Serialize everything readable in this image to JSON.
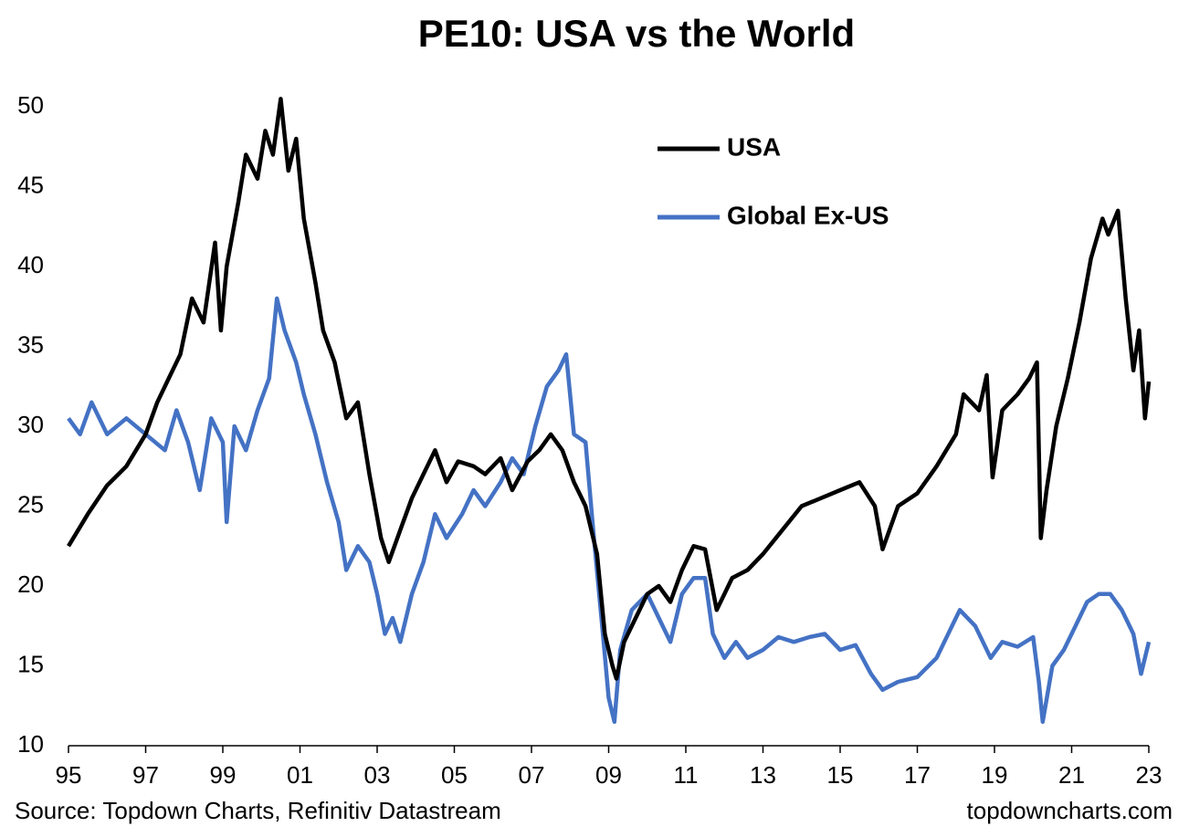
{
  "chart_data": {
    "type": "line",
    "title": "PE10: USA vs the World",
    "annotations": [
      "Source: Topdown Charts, Refinitiv Datastream",
      "topdowncharts.com"
    ],
    "xlim": [
      1995,
      2023
    ],
    "xticks": [
      {
        "value": 1995,
        "label": "95"
      },
      {
        "value": 1997,
        "label": "97"
      },
      {
        "value": 1999,
        "label": "99"
      },
      {
        "value": 2001,
        "label": "01"
      },
      {
        "value": 2003,
        "label": "03"
      },
      {
        "value": 2005,
        "label": "05"
      },
      {
        "value": 2007,
        "label": "07"
      },
      {
        "value": 2009,
        "label": "09"
      },
      {
        "value": 2011,
        "label": "11"
      },
      {
        "value": 2013,
        "label": "13"
      },
      {
        "value": 2015,
        "label": "15"
      },
      {
        "value": 2017,
        "label": "17"
      },
      {
        "value": 2019,
        "label": "19"
      },
      {
        "value": 2021,
        "label": "21"
      },
      {
        "value": 2023,
        "label": "23"
      }
    ],
    "ylim": [
      10,
      50
    ],
    "yticks": [
      10,
      15,
      20,
      25,
      30,
      35,
      40,
      45,
      50
    ],
    "grid": false,
    "legend": "top-center",
    "series": [
      {
        "name": "USA",
        "color": "#000000",
        "x": [
          1995.0,
          1995.5,
          1996.0,
          1996.5,
          1997.0,
          1997.3,
          1997.6,
          1997.9,
          1998.2,
          1998.5,
          1998.8,
          1998.95,
          1999.1,
          1999.4,
          1999.6,
          1999.9,
          2000.1,
          2000.3,
          2000.5,
          2000.7,
          2000.9,
          2001.1,
          2001.4,
          2001.6,
          2001.9,
          2002.2,
          2002.5,
          2002.8,
          2003.1,
          2003.3,
          2003.6,
          2003.9,
          2004.2,
          2004.5,
          2004.8,
          2005.1,
          2005.5,
          2005.8,
          2006.2,
          2006.5,
          2006.9,
          2007.2,
          2007.5,
          2007.8,
          2008.1,
          2008.4,
          2008.7,
          2008.9,
          2009.1,
          2009.2,
          2009.4,
          2009.7,
          2010.0,
          2010.3,
          2010.6,
          2010.9,
          2011.2,
          2011.5,
          2011.8,
          2012.2,
          2012.6,
          2013.0,
          2013.5,
          2014.0,
          2014.5,
          2015.0,
          2015.5,
          2015.9,
          2016.1,
          2016.5,
          2017.0,
          2017.5,
          2018.0,
          2018.2,
          2018.6,
          2018.8,
          2018.95,
          2019.2,
          2019.6,
          2019.9,
          2020.1,
          2020.2,
          2020.35,
          2020.6,
          2020.9,
          2021.2,
          2021.5,
          2021.8,
          2021.95,
          2022.2,
          2022.4,
          2022.6,
          2022.75,
          2022.9,
          2023.0
        ],
        "values": [
          22.5,
          24.5,
          26.3,
          27.5,
          29.5,
          31.5,
          33,
          34.5,
          38,
          36.5,
          41.5,
          36,
          40,
          44,
          47,
          45.5,
          48.5,
          47,
          50.5,
          46,
          48,
          43,
          39,
          36,
          34,
          30.5,
          31.5,
          27,
          23,
          21.5,
          23.5,
          25.5,
          27,
          28.5,
          26.5,
          27.8,
          27.5,
          27,
          28,
          26,
          27.8,
          28.5,
          29.5,
          28.5,
          26.5,
          25,
          22,
          17,
          15,
          14.2,
          16.5,
          18,
          19.5,
          20,
          19,
          21,
          22.5,
          22.3,
          18.5,
          20.5,
          21,
          22,
          23.5,
          25,
          25.5,
          26,
          26.5,
          25,
          22.3,
          25,
          25.8,
          27.5,
          29.5,
          32,
          31,
          33.2,
          26.8,
          31,
          32,
          33,
          34,
          23,
          26,
          30,
          33,
          36.5,
          40.5,
          43,
          42,
          43.5,
          38,
          33.5,
          36,
          30.5,
          32.8
        ]
      },
      {
        "name": "Global Ex-US",
        "color": "#4472c4",
        "x": [
          1995.0,
          1995.3,
          1995.6,
          1996.0,
          1996.5,
          1997.0,
          1997.5,
          1997.8,
          1998.1,
          1998.4,
          1998.7,
          1999.0,
          1999.1,
          1999.3,
          1999.6,
          1999.9,
          2000.2,
          2000.4,
          2000.6,
          2000.9,
          2001.1,
          2001.4,
          2001.7,
          2002.0,
          2002.2,
          2002.5,
          2002.8,
          2003.0,
          2003.2,
          2003.4,
          2003.6,
          2003.9,
          2004.2,
          2004.5,
          2004.8,
          2005.2,
          2005.5,
          2005.8,
          2006.2,
          2006.5,
          2006.8,
          2007.1,
          2007.4,
          2007.7,
          2007.9,
          2008.1,
          2008.4,
          2008.6,
          2008.85,
          2009.0,
          2009.15,
          2009.3,
          2009.6,
          2010.0,
          2010.3,
          2010.6,
          2010.9,
          2011.2,
          2011.5,
          2011.7,
          2012.0,
          2012.3,
          2012.6,
          2013.0,
          2013.4,
          2013.8,
          2014.2,
          2014.6,
          2015.0,
          2015.4,
          2015.8,
          2016.1,
          2016.5,
          2017.0,
          2017.5,
          2017.9,
          2018.1,
          2018.5,
          2018.9,
          2019.2,
          2019.6,
          2020.0,
          2020.15,
          2020.25,
          2020.5,
          2020.8,
          2021.1,
          2021.4,
          2021.7,
          2022.0,
          2022.3,
          2022.6,
          2022.8,
          2023.0
        ],
        "values": [
          30.5,
          29.5,
          31.5,
          29.5,
          30.5,
          29.5,
          28.5,
          31,
          29,
          26,
          30.5,
          29,
          24,
          30,
          28.5,
          31,
          33,
          38,
          36,
          34,
          32,
          29.5,
          26.5,
          24,
          21,
          22.5,
          21.5,
          19.5,
          17,
          18,
          16.5,
          19.5,
          21.5,
          24.5,
          23,
          24.5,
          26,
          25,
          26.5,
          28,
          27,
          30,
          32.5,
          33.5,
          34.5,
          29.5,
          29,
          23.5,
          17,
          13,
          11.5,
          16,
          18.5,
          19.5,
          18,
          16.5,
          19.5,
          20.5,
          20.5,
          17,
          15.5,
          16.5,
          15.5,
          16,
          16.8,
          16.5,
          16.8,
          17,
          16,
          16.3,
          14.5,
          13.5,
          14,
          14.3,
          15.5,
          17.5,
          18.5,
          17.5,
          15.5,
          16.5,
          16.2,
          16.8,
          14,
          11.5,
          15,
          16,
          17.5,
          19,
          19.5,
          19.5,
          18.5,
          17,
          14.5,
          16.5
        ]
      }
    ]
  }
}
